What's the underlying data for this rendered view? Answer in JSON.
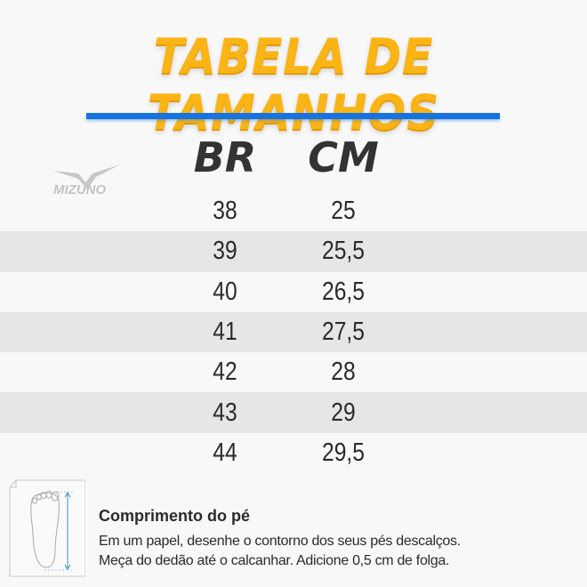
{
  "title": "TABELA DE TAMANHOS",
  "brand": "MIZUNO",
  "colors": {
    "title": "#fbb416",
    "rule": "#1773e0",
    "row_alt": "#e6e6e6",
    "text": "#2b2b2b"
  },
  "table": {
    "headers": [
      "BR",
      "CM"
    ],
    "rows": [
      [
        "38",
        "25"
      ],
      [
        "39",
        "25,5"
      ],
      [
        "40",
        "26,5"
      ],
      [
        "41",
        "27,5"
      ],
      [
        "42",
        "28"
      ],
      [
        "43",
        "29"
      ],
      [
        "44",
        "29,5"
      ]
    ]
  },
  "info": {
    "icon": "foot-measure-icon",
    "title": "Comprimento do pé",
    "lines": [
      "Em um papel, desenhe o contorno dos seus pés descalços.",
      "Meça do dedão até o calcanhar. Adicione 0,5 cm de folga."
    ]
  }
}
